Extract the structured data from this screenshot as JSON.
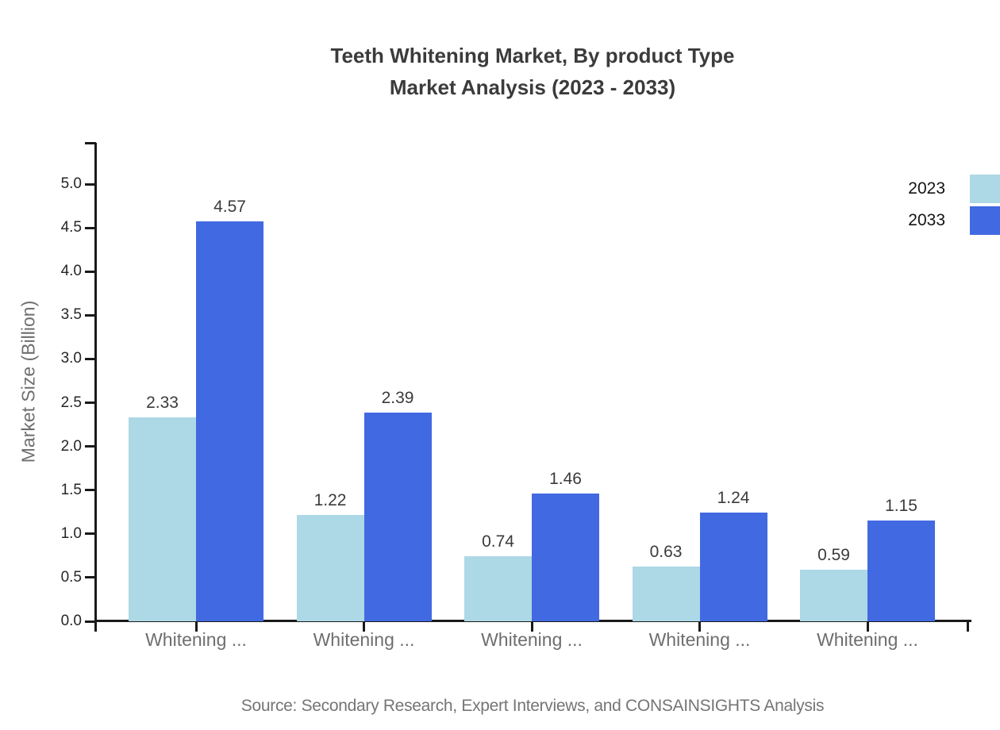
{
  "title": {
    "line1": "Teeth Whitening Market, By product Type",
    "line2": "Market Analysis (2023 - 2033)"
  },
  "source": "Source: Secondary Research, Expert Interviews, and CONSAINSIGHTS Analysis",
  "colors": {
    "series_2023": "#ADD8E6",
    "series_2033": "#4169E1",
    "title_text": "#3B3B3B",
    "axis_line": "#1A1A1A",
    "tick_label_text": "#262626",
    "axis_label_text": "#6E6E6E",
    "category_label_text": "#6E6E6E",
    "value_label_text": "#3B3B3B",
    "legend_text": "#141414",
    "source_text": "#757575"
  },
  "legend": {
    "position": "top-right",
    "entries": [
      {
        "label": "2023",
        "color": "#ADD8E6"
      },
      {
        "label": "2033",
        "color": "#4169E1"
      }
    ]
  },
  "chart_data": {
    "type": "bar",
    "title": "Teeth Whitening Market, By product Type Market Analysis (2023 - 2033)",
    "categories": [
      "Whitening ...",
      "Whitening ...",
      "Whitening ...",
      "Whitening ...",
      "Whitening ..."
    ],
    "series": [
      {
        "name": "2023",
        "color": "#ADD8E6",
        "values": [
          2.33,
          1.22,
          0.74,
          0.63,
          0.59
        ]
      },
      {
        "name": "2033",
        "color": "#4169E1",
        "values": [
          4.57,
          2.39,
          1.46,
          1.24,
          1.15
        ]
      }
    ],
    "xlabel": "",
    "ylabel": "Market Size (Billion)",
    "ylim": [
      0,
      5.5
    ],
    "y_tick_step": 0.5,
    "y_tick_labels": [
      "0.0",
      "0.5",
      "1.0",
      "1.5",
      "2.0",
      "2.5",
      "3.0",
      "3.5",
      "4.0",
      "4.5",
      "5.0"
    ],
    "value_labels_shown": true,
    "grid": false,
    "legend_position": "top-right"
  }
}
